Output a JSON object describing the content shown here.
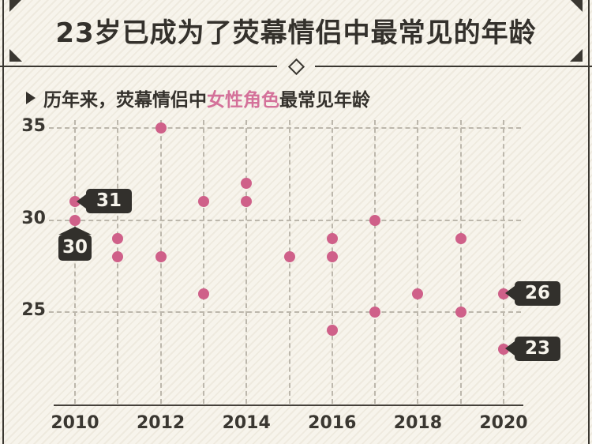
{
  "header": {
    "title": "23岁已成为了荧幕情侣中最常见的年龄"
  },
  "subtitle": {
    "prefix": "历年来，荧幕情侣中",
    "highlight": "女性角色",
    "suffix": "最常见年龄"
  },
  "colors": {
    "background": "#f7f4ec",
    "ink": "#34312c",
    "grid": "#bcb7ac",
    "axis": "#45413b",
    "dot": "#cf6089",
    "highlight_text": "#d4719a",
    "tag_bg": "#32302c",
    "tag_text": "#f7f4ec"
  },
  "chart_data": {
    "type": "scatter",
    "title": "历年来，荧幕情侣中女性角色最常见年龄",
    "xlabel": "",
    "ylabel": "",
    "x_range": [
      2010,
      2020
    ],
    "y_range": [
      20,
      35
    ],
    "x_ticks": [
      2010,
      2012,
      2014,
      2016,
      2018,
      2020
    ],
    "y_ticks": [
      35,
      30,
      25
    ],
    "grid": "dashed; vertical line per year, horizontal line per y tick",
    "legend": "none",
    "points": [
      {
        "year": 2010,
        "age": 31
      },
      {
        "year": 2010,
        "age": 30
      },
      {
        "year": 2011,
        "age": 29
      },
      {
        "year": 2011,
        "age": 28
      },
      {
        "year": 2012,
        "age": 35
      },
      {
        "year": 2012,
        "age": 28
      },
      {
        "year": 2013,
        "age": 31
      },
      {
        "year": 2013,
        "age": 26
      },
      {
        "year": 2014,
        "age": 32
      },
      {
        "year": 2014,
        "age": 31
      },
      {
        "year": 2015,
        "age": 28
      },
      {
        "year": 2016,
        "age": 29
      },
      {
        "year": 2016,
        "age": 28
      },
      {
        "year": 2016,
        "age": 24
      },
      {
        "year": 2017,
        "age": 30
      },
      {
        "year": 2017,
        "age": 25
      },
      {
        "year": 2018,
        "age": 26
      },
      {
        "year": 2019,
        "age": 29
      },
      {
        "year": 2019,
        "age": 25
      },
      {
        "year": 2020,
        "age": 26
      },
      {
        "year": 2020,
        "age": 23
      }
    ],
    "annotations": [
      {
        "label": "31",
        "year": 2010,
        "age": 31,
        "side": "right"
      },
      {
        "label": "30",
        "year": 2010,
        "age": 30,
        "side": "below"
      },
      {
        "label": "26",
        "year": 2020,
        "age": 26,
        "side": "right"
      },
      {
        "label": "23",
        "year": 2020,
        "age": 23,
        "side": "right"
      }
    ]
  }
}
